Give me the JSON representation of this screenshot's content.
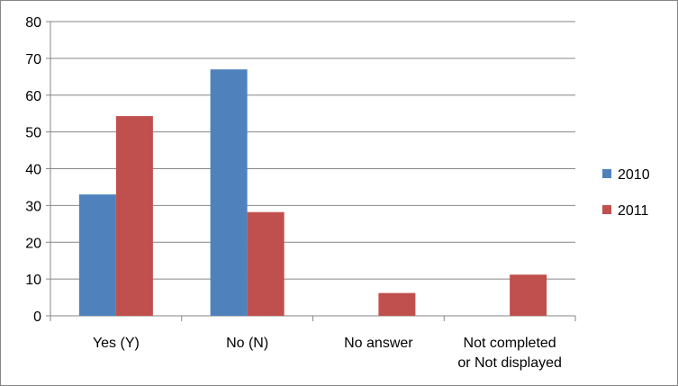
{
  "chart_data": {
    "type": "bar",
    "title": "",
    "xlabel": "",
    "ylabel": "",
    "categories": [
      [
        "Yes (Y)"
      ],
      [
        "No (N)"
      ],
      [
        "No answer"
      ],
      [
        "Not completed",
        "or Not displayed"
      ]
    ],
    "series": [
      {
        "name": "2010",
        "color": "#4F81BD",
        "values": [
          33,
          67,
          0,
          0
        ]
      },
      {
        "name": "2011",
        "color": "#C0504D",
        "values": [
          54.3,
          28.2,
          6.2,
          11.2
        ]
      }
    ],
    "ylim": [
      0,
      80
    ],
    "yticks": [
      0,
      10,
      20,
      30,
      40,
      50,
      60,
      70,
      80
    ],
    "grid": true,
    "legend": "right"
  }
}
